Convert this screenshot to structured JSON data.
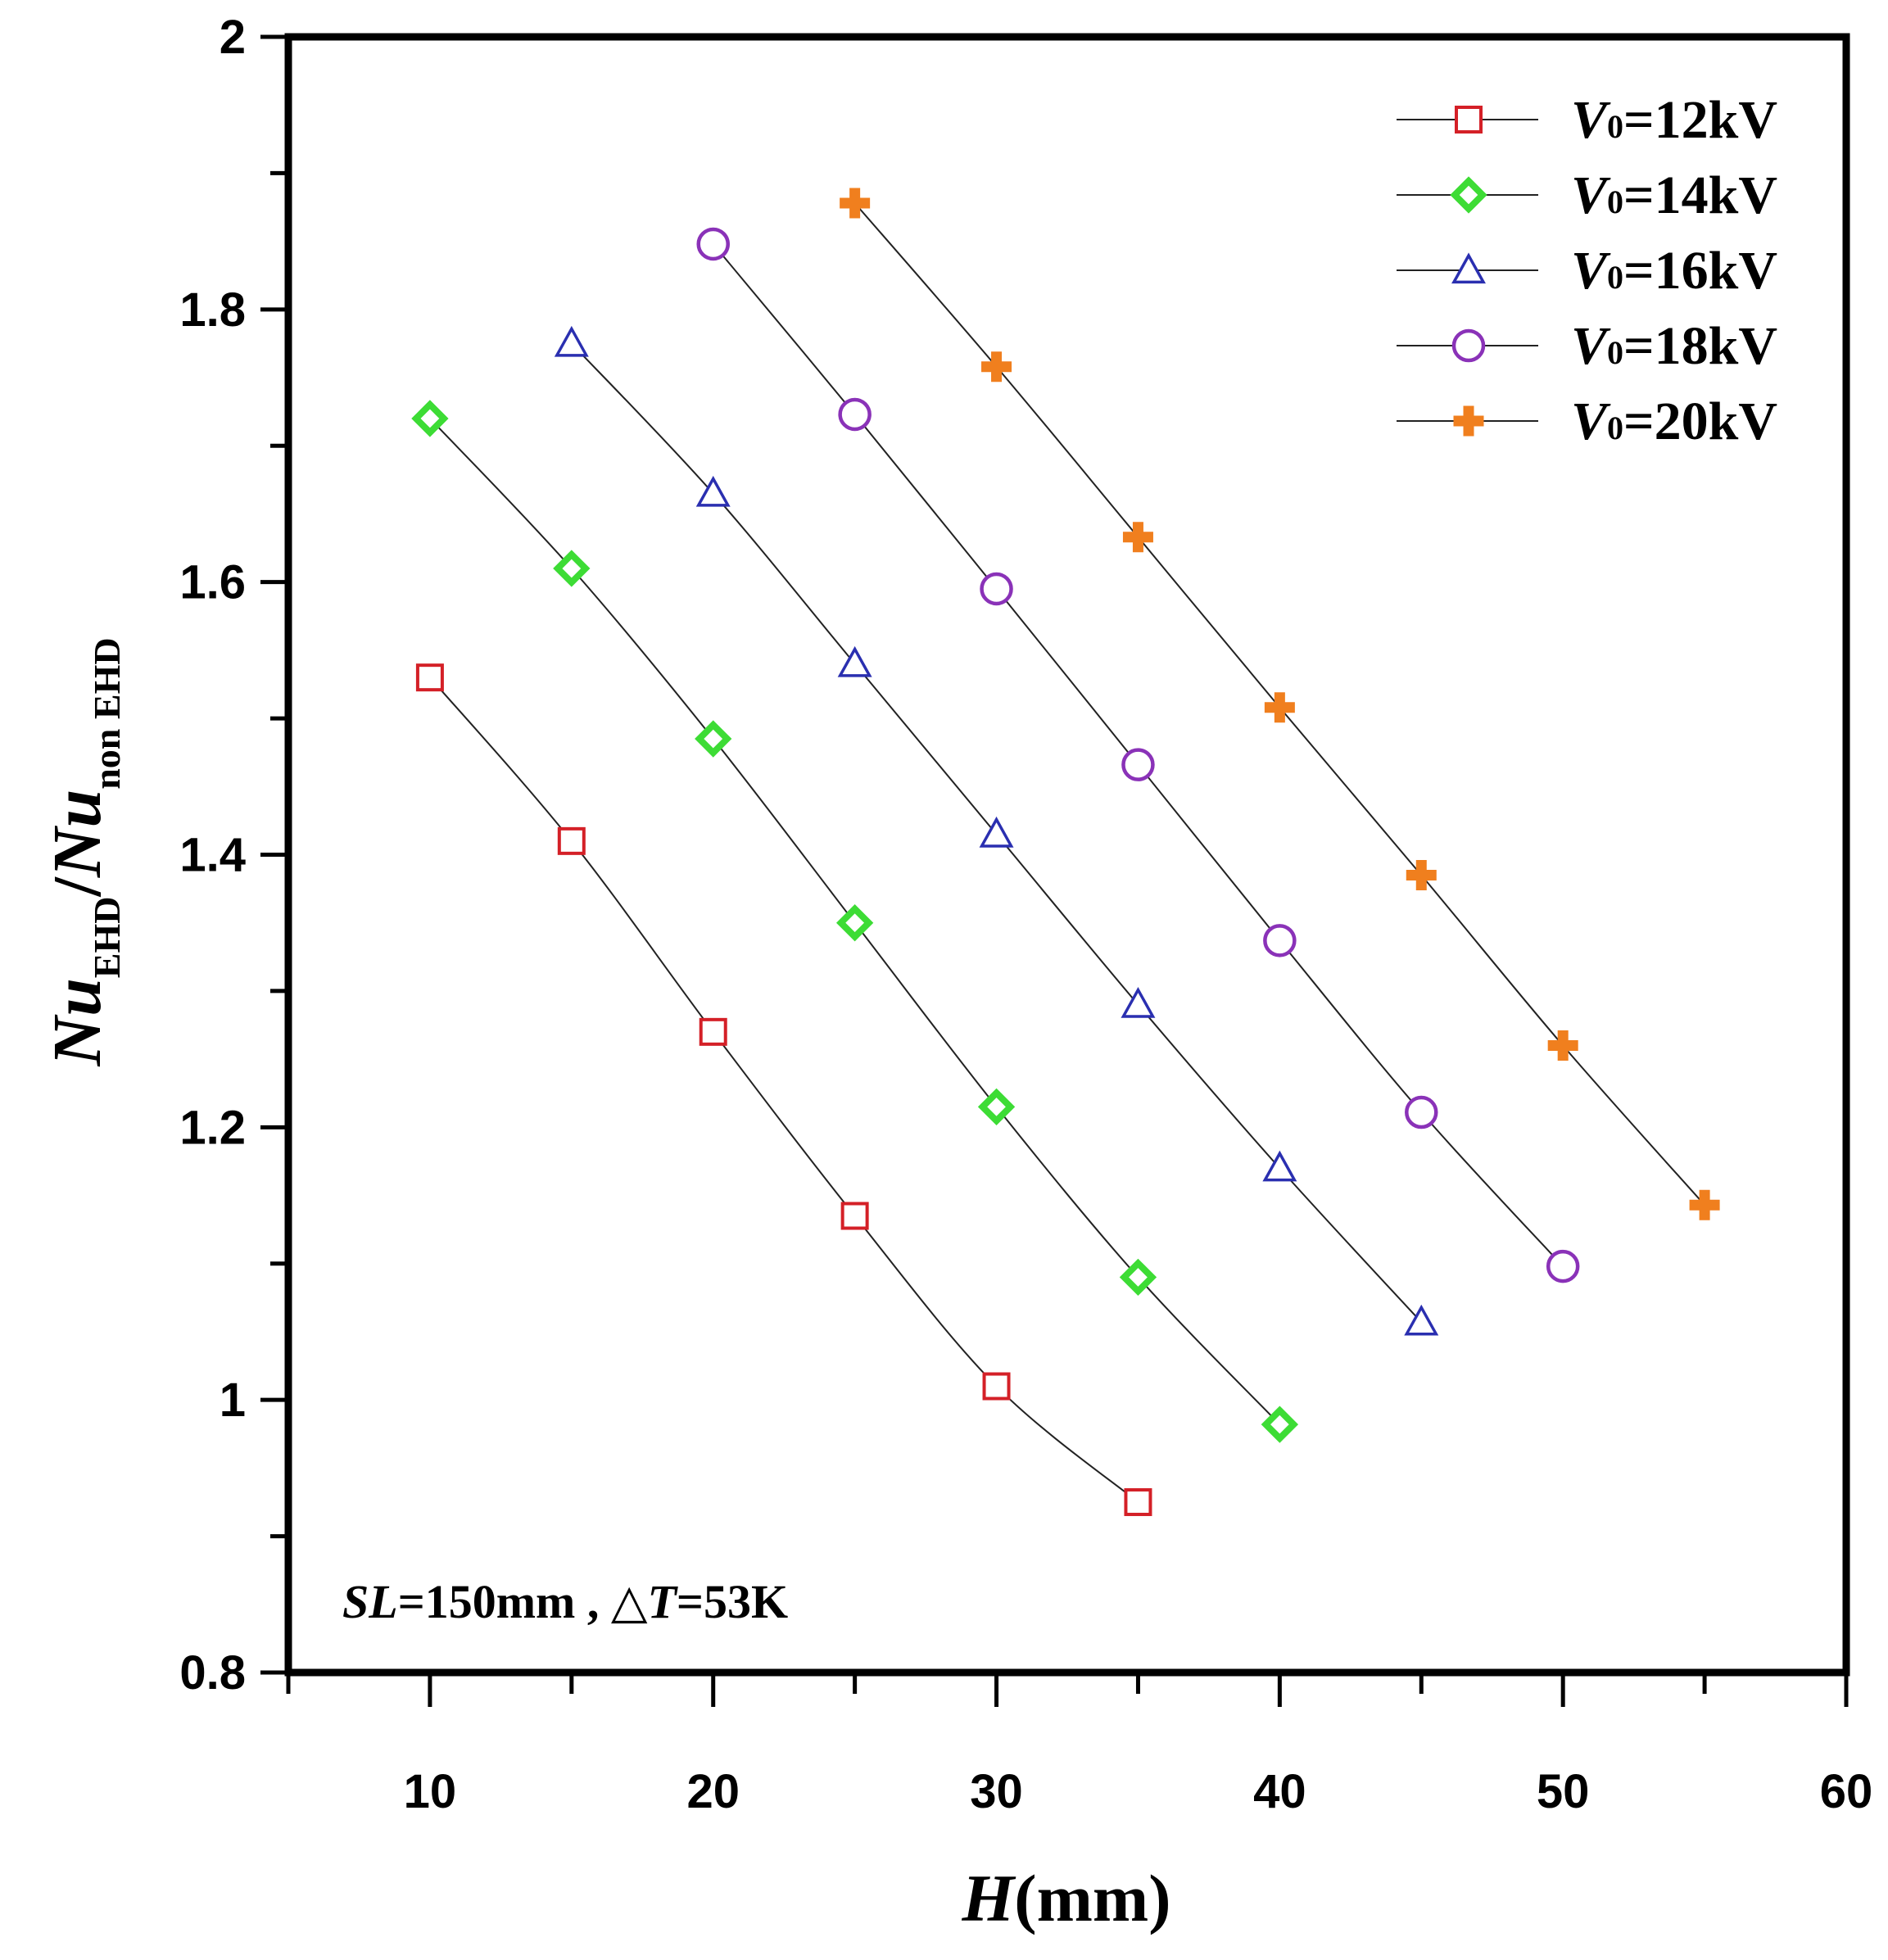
{
  "chart_data": {
    "type": "scatter",
    "xlabel": "H(mm)",
    "xlabel_parts": {
      "var": "H",
      "unit": "(mm)"
    },
    "ylabel": "NuEHD/Nunon EHD",
    "ylabel_parts": {
      "num": "Nu",
      "num_sub": "EHD",
      "sep": "/",
      "den": "Nu",
      "den_sub": "non EHD"
    },
    "xlim": [
      5,
      60
    ],
    "ylim": [
      0.8,
      2.0
    ],
    "x_ticks": [
      10,
      20,
      30,
      40,
      50,
      60
    ],
    "x_minor_ticks": [
      5,
      15,
      25,
      35,
      45,
      55
    ],
    "y_ticks": [
      0.8,
      1.0,
      1.2,
      1.4,
      1.6,
      1.8,
      2.0
    ],
    "y_tick_labels": [
      "0.8",
      "1",
      "1.2",
      "1.4",
      "1.6",
      "1.8",
      "2"
    ],
    "y_minor_ticks": [
      0.9,
      1.1,
      1.3,
      1.5,
      1.7,
      1.9
    ],
    "annotation": {
      "v1": "SL",
      "t1": "=150mm , ",
      "sym": "△",
      "v2": "T",
      "t2": "=53K"
    },
    "legend_position": "top-right",
    "series": [
      {
        "name": "V0=12kV",
        "label_var": "V",
        "label_sub": "0",
        "label_rest": "=12kV",
        "marker": "square",
        "color": "#d42027",
        "x": [
          10,
          15,
          20,
          25,
          30,
          35
        ],
        "y": [
          1.53,
          1.41,
          1.27,
          1.135,
          1.01,
          0.925
        ]
      },
      {
        "name": "V0=14kV",
        "label_var": "V",
        "label_sub": "0",
        "label_rest": "=14kV",
        "marker": "diamond",
        "color": "#3ddc35",
        "x": [
          10,
          15,
          20,
          25,
          30,
          35,
          40
        ],
        "y": [
          1.72,
          1.61,
          1.485,
          1.35,
          1.215,
          1.09,
          0.982
        ]
      },
      {
        "name": "V0=16kV",
        "label_var": "V",
        "label_sub": "0",
        "label_rest": "=16kV",
        "marker": "triangle",
        "color": "#2a2fb0",
        "x": [
          15,
          20,
          25,
          30,
          35,
          40,
          45
        ],
        "y": [
          1.775,
          1.665,
          1.54,
          1.415,
          1.29,
          1.17,
          1.057
        ]
      },
      {
        "name": "V0=18kV",
        "label_var": "V",
        "label_sub": "0",
        "label_rest": "=18kV",
        "marker": "circle",
        "color": "#8a32b8",
        "x": [
          20,
          25,
          30,
          35,
          40,
          45,
          50
        ],
        "y": [
          1.848,
          1.723,
          1.595,
          1.466,
          1.337,
          1.211,
          1.098
        ]
      },
      {
        "name": "V0=20kV",
        "label_var": "V",
        "label_sub": "0",
        "label_rest": "=20kV",
        "marker": "plus",
        "color": "#f07f1e",
        "x": [
          25,
          30,
          35,
          40,
          45,
          50,
          55
        ],
        "y": [
          1.878,
          1.758,
          1.633,
          1.508,
          1.385,
          1.26,
          1.143
        ]
      }
    ]
  }
}
